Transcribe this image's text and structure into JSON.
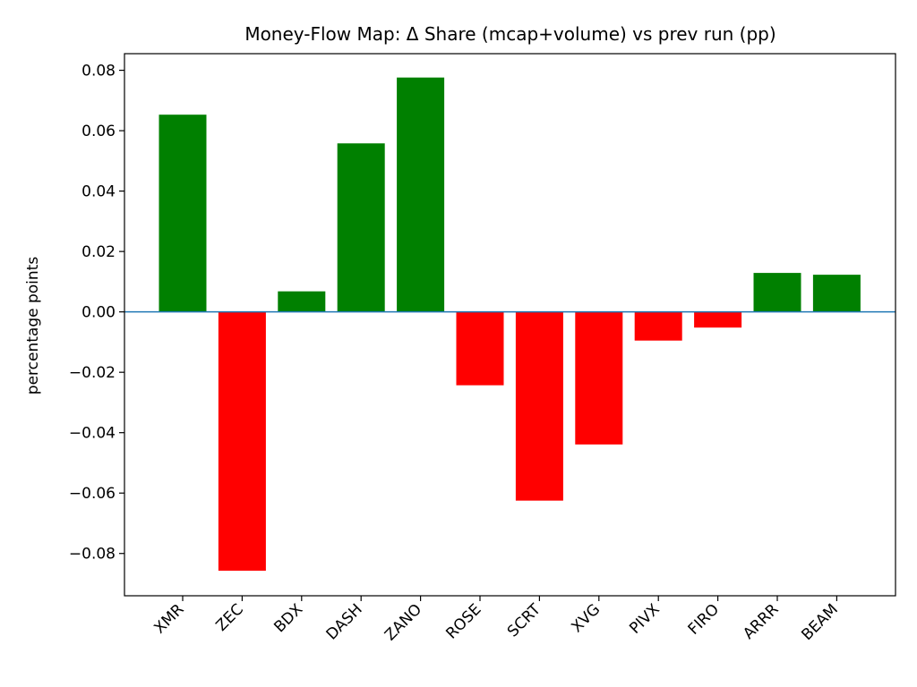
{
  "chart_data": {
    "type": "bar",
    "title": "Money-Flow Map: Δ Share (mcap+volume) vs prev run (pp)",
    "xlabel": "",
    "ylabel": "percentage points",
    "categories": [
      "XMR",
      "ZEC",
      "BDX",
      "DASH",
      "ZANO",
      "ROSE",
      "SCRT",
      "XVG",
      "PIVX",
      "FIRO",
      "ARRR",
      "BEAM"
    ],
    "values": [
      0.0653,
      -0.0857,
      0.0068,
      0.0558,
      0.0776,
      -0.0243,
      -0.0625,
      -0.0439,
      -0.0095,
      -0.0052,
      0.0129,
      0.0123
    ],
    "ylim": [
      -0.094,
      0.0855
    ],
    "yticks": [
      -0.08,
      -0.06,
      -0.04,
      -0.02,
      0.0,
      0.02,
      0.04,
      0.06,
      0.08
    ],
    "ytick_labels": [
      "−0.08",
      "−0.06",
      "−0.04",
      "−0.02",
      "0.00",
      "0.02",
      "0.04",
      "0.06",
      "0.08"
    ],
    "grid": false,
    "legend": "none",
    "colors": {
      "positive": "#008000",
      "negative": "#ff0000",
      "zero_line": "#1f77b4"
    }
  }
}
